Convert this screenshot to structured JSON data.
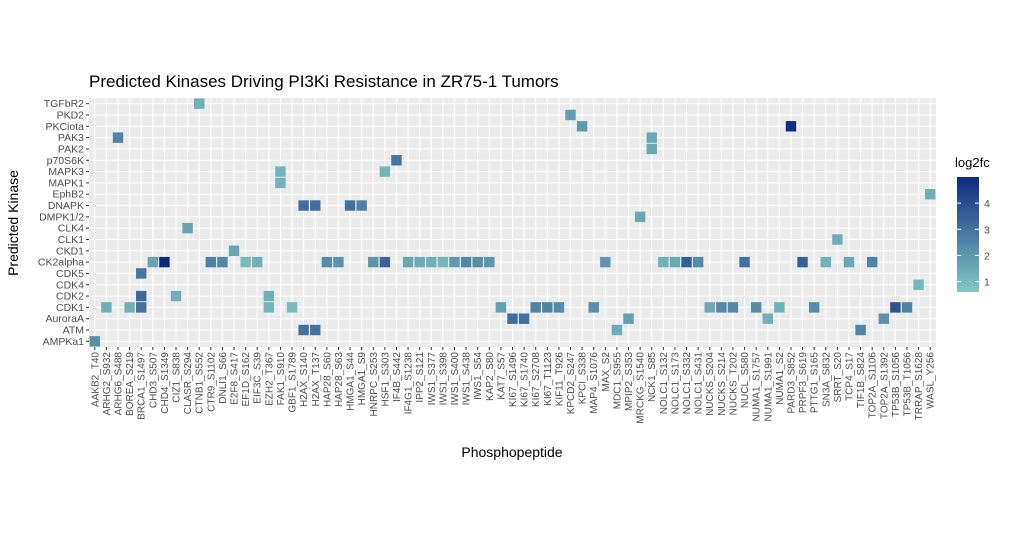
{
  "chart_data": {
    "type": "heatmap",
    "title": "Predicted Kinases Driving PI3Ki Resistance in ZR75-1 Tumors",
    "xlabel": "Phosphopeptide",
    "ylabel": "Predicted Kinase",
    "grid": true,
    "legend": {
      "title": "log2fc",
      "position": "right",
      "ticks": [
        1,
        2,
        3,
        4
      ],
      "range": [
        0.6,
        5.0
      ],
      "colors": [
        "#83c9c3",
        "#0d2a80"
      ]
    },
    "x_categories": [
      "AAKB2_T40",
      "ARHG2_S932",
      "ARHG6_S488",
      "BOREA_S219",
      "BRCA1_S1497",
      "CHD3_S507",
      "CHD4_S1349",
      "CIZ1_S838",
      "CLASR_S294",
      "CTNB1_S552",
      "CTR9_S1102",
      "DNLI1_S66",
      "E2F8_S417",
      "EF1D_S162",
      "EIF3C_S39",
      "EZH2_T367",
      "FAK1_S910",
      "GBF1_S1789",
      "H2AX_S140",
      "H2AX_T137",
      "HAP28_S60",
      "HAP28_S63",
      "HMGA1_S44",
      "HMGA1_S9",
      "HNRPC_S253",
      "HSF1_S303",
      "IF4B_S442",
      "IF4G1_S1238",
      "IPP2_S121",
      "IWS1_S377",
      "IWS1_S398",
      "IWS1_S400",
      "IWS1_S438",
      "IWS1_S54",
      "KAP2_S80",
      "KAT7_S57",
      "KI67_S1496",
      "KI67_S1740",
      "KI67_S2708",
      "KI67_T1123",
      "KIF11_T926",
      "KPCD2_S247",
      "KPCI_S338",
      "MAP4_S1076",
      "MAX_S2",
      "MDC1_S955",
      "MPIP2_S353",
      "MRCKG_S1540",
      "NCK1_S85",
      "NOLC1_S132",
      "NOLC1_S173",
      "NOLC1_S332",
      "NOLC1_S431",
      "NUCKS_S204",
      "NUCKS_S214",
      "NUCKS_T202",
      "NUCL_S580",
      "NUMA1_S1757",
      "NUMA1_S1991",
      "NUMA1_S2",
      "PARD3_S852",
      "PRPF3_S619",
      "PTTG1_S165",
      "SN3A_S832",
      "SRRT_S20",
      "TCP4_S17",
      "TIF1B_S824",
      "TOP2A_S1106",
      "TOP2A_S1392",
      "TP53B_S1056",
      "TP53B_T1056",
      "TRRAP_S1628",
      "WASL_Y256"
    ],
    "x_tick_labels": [
      "AAKB2_T40",
      "ARHG2_S932",
      "ARHG6_S488",
      "BOREA_S219",
      "BRCA1_S1497",
      "CHD3_S507",
      "CHD4_S1349",
      "CIZ1_S838",
      "CLASR_S294",
      "CTNB1_S552",
      "CTR9_S1102",
      "DNLI1_S66",
      "E2F8_S417",
      "EF1D_S162",
      "EIF3C_S39",
      "EZH2_T367",
      "FAK1_S910",
      "GBF1_S1789",
      "H2AX_S140",
      "H2AX_T137",
      "HAP28_S60",
      "HAP28_S63",
      "HMGA1_S44",
      "HMGA1_S9",
      "HNRPC_S253",
      "HSF1_S303",
      "IF4B_S442",
      "IF4G1_S1238",
      "IPP2_S121",
      "IWS1_S377",
      "IWS1_S398",
      "IWS1_S400",
      "IWS1_S438",
      "IWS1_S54",
      "KAP2_S80",
      "KAT7_S57",
      "KI67_S1496",
      "KI67_S1740",
      "KI67_S2708",
      "KI67_T1123",
      "KIF11_T926",
      "KPCD2_S247",
      "KPCI_S338",
      "MAP4_S1076",
      "MAX_S2",
      "MDC1_S955",
      "MPIP2_S353",
      "MRCKG_S1540",
      "NCK1_S85",
      "NOLC1_S132",
      "NOLC1_S173",
      "NOLC1_S332",
      "NOLC1_S431",
      "NUCKS_S204",
      "NUCKS_S214",
      "NUCKS_T202",
      "NUCL_S580",
      "NUMA1_S1757",
      "NUMA1_S1991",
      "NUMA1_S2",
      "PARD3_S852",
      "PRPF3_S619",
      "PTTG1_S165",
      "SN3A_S832",
      "SRRT_S20",
      "TCP4_S17",
      "TIF1B_S824",
      "TOP2A_S1106",
      "TOP2A_S1392",
      "TP53B_S1056",
      "TP53B_T1056",
      "TRRAP_S1628",
      "WASL_Y256"
    ],
    "y_categories": [
      "AMPKa1",
      "ATM",
      "AuroraA",
      "CDK1",
      "CDK2",
      "CDK4",
      "CDK5",
      "CK2alpha",
      "CKD1",
      "CLK1",
      "CLK4",
      "DMPK1/2",
      "DNAPK",
      "EphB2",
      "MAPK1",
      "MAPK3",
      "p70S6K",
      "PAK2",
      "PAK3",
      "PKCiota",
      "PKD2",
      "TGFbR2"
    ],
    "cells": [
      {
        "x": "AAKB2_T40",
        "y": "AMPKa1",
        "value": 2.2
      },
      {
        "x": "ARHG2_S932",
        "y": "CDK1",
        "value": 1.4
      },
      {
        "x": "ARHG6_S488",
        "y": "PAK3",
        "value": 2.5
      },
      {
        "x": "BOREA_S219",
        "y": "CDK1",
        "value": 1.3
      },
      {
        "x": "BRCA1_S1497",
        "y": "CDK1",
        "value": 3.0
      },
      {
        "x": "BRCA1_S1497",
        "y": "CDK2",
        "value": 3.2
      },
      {
        "x": "BRCA1_S1497",
        "y": "CDK5",
        "value": 2.9
      },
      {
        "x": "CHD3_S507",
        "y": "CK2alpha",
        "value": 1.6
      },
      {
        "x": "CHD4_S1349",
        "y": "CK2alpha",
        "value": 5.0
      },
      {
        "x": "CIZ1_S838",
        "y": "CDK2",
        "value": 1.3
      },
      {
        "x": "CLASR_S294",
        "y": "CLK4",
        "value": 1.6
      },
      {
        "x": "CTNB1_S552",
        "y": "TGFbR2",
        "value": 1.3
      },
      {
        "x": "CTR9_S1102",
        "y": "CK2alpha",
        "value": 2.6
      },
      {
        "x": "DNLI1_S66",
        "y": "CK2alpha",
        "value": 2.4
      },
      {
        "x": "E2F8_S417",
        "y": "CKD1",
        "value": 1.6
      },
      {
        "x": "EF1D_S162",
        "y": "CK2alpha",
        "value": 1.0
      },
      {
        "x": "EIF3C_S39",
        "y": "CK2alpha",
        "value": 1.3
      },
      {
        "x": "EZH2_T367",
        "y": "CDK1",
        "value": 1.2
      },
      {
        "x": "EZH2_T367",
        "y": "CDK2",
        "value": 1.3
      },
      {
        "x": "FAK1_S910",
        "y": "MAPK1",
        "value": 1.2
      },
      {
        "x": "FAK1_S910",
        "y": "MAPK3",
        "value": 1.2
      },
      {
        "x": "GBF1_S1789",
        "y": "CDK1",
        "value": 1.0
      },
      {
        "x": "H2AX_S140",
        "y": "ATM",
        "value": 3.0
      },
      {
        "x": "H2AX_S140",
        "y": "DNAPK",
        "value": 3.1
      },
      {
        "x": "H2AX_T137",
        "y": "ATM",
        "value": 3.0
      },
      {
        "x": "H2AX_T137",
        "y": "DNAPK",
        "value": 3.1
      },
      {
        "x": "HAP28_S60",
        "y": "CK2alpha",
        "value": 2.3
      },
      {
        "x": "HAP28_S63",
        "y": "CK2alpha",
        "value": 2.1
      },
      {
        "x": "HMGA1_S44",
        "y": "DNAPK",
        "value": 3.0
      },
      {
        "x": "HMGA1_S9",
        "y": "DNAPK",
        "value": 2.6
      },
      {
        "x": "HNRPC_S253",
        "y": "CK2alpha",
        "value": 2.0
      },
      {
        "x": "HSF1_S303",
        "y": "CK2alpha",
        "value": 3.4
      },
      {
        "x": "HSF1_S303",
        "y": "MAPK3",
        "value": 1.2
      },
      {
        "x": "IF4B_S442",
        "y": "p70S6K",
        "value": 2.9
      },
      {
        "x": "IF4G1_S1238",
        "y": "CK2alpha",
        "value": 1.5
      },
      {
        "x": "IPP2_S121",
        "y": "CK2alpha",
        "value": 1.4
      },
      {
        "x": "IWS1_S377",
        "y": "CK2alpha",
        "value": 1.3
      },
      {
        "x": "IWS1_S398",
        "y": "CK2alpha",
        "value": 1.1
      },
      {
        "x": "IWS1_S400",
        "y": "CK2alpha",
        "value": 1.9
      },
      {
        "x": "IWS1_S438",
        "y": "CK2alpha",
        "value": 2.4
      },
      {
        "x": "IWS1_S54",
        "y": "CK2alpha",
        "value": 2.2
      },
      {
        "x": "KAP2_S80",
        "y": "CK2alpha",
        "value": 2.0
      },
      {
        "x": "KAT7_S57",
        "y": "CDK1",
        "value": 1.8
      },
      {
        "x": "KI67_S1496",
        "y": "AuroraA",
        "value": 3.1
      },
      {
        "x": "KI67_S1740",
        "y": "AuroraA",
        "value": 3.0
      },
      {
        "x": "KI67_S2708",
        "y": "CDK1",
        "value": 2.6
      },
      {
        "x": "KI67_T1123",
        "y": "CDK1",
        "value": 2.6
      },
      {
        "x": "KIF11_T926",
        "y": "CDK1",
        "value": 2.3
      },
      {
        "x": "KPCD2_S247",
        "y": "PKD2",
        "value": 1.8
      },
      {
        "x": "KPCI_S338",
        "y": "PKCiota",
        "value": 1.9
      },
      {
        "x": "MAP4_S1076",
        "y": "CDK1",
        "value": 2.2
      },
      {
        "x": "MAX_S2",
        "y": "CK2alpha",
        "value": 2.0
      },
      {
        "x": "MDC1_S955",
        "y": "ATM",
        "value": 1.4
      },
      {
        "x": "MPIP2_S353",
        "y": "AuroraA",
        "value": 1.8
      },
      {
        "x": "MRCKG_S1540",
        "y": "DMPK1/2",
        "value": 1.5
      },
      {
        "x": "NCK1_S85",
        "y": "PAK2",
        "value": 1.5
      },
      {
        "x": "NCK1_S85",
        "y": "PAK3",
        "value": 1.5
      },
      {
        "x": "NOLC1_S132",
        "y": "CK2alpha",
        "value": 1.3
      },
      {
        "x": "NOLC1_S173",
        "y": "CK2alpha",
        "value": 1.5
      },
      {
        "x": "NOLC1_S332",
        "y": "CK2alpha",
        "value": 3.5
      },
      {
        "x": "NOLC1_S431",
        "y": "CK2alpha",
        "value": 2.3
      },
      {
        "x": "NUCKS_S204",
        "y": "CDK1",
        "value": 1.5
      },
      {
        "x": "NUCKS_S214",
        "y": "CDK1",
        "value": 2.4
      },
      {
        "x": "NUCKS_T202",
        "y": "CDK1",
        "value": 2.4
      },
      {
        "x": "NUCL_S580",
        "y": "CK2alpha",
        "value": 3.0
      },
      {
        "x": "NUMA1_S1757",
        "y": "CDK1",
        "value": 2.3
      },
      {
        "x": "NUMA1_S1991",
        "y": "AuroraA",
        "value": 1.3
      },
      {
        "x": "NUMA1_S2",
        "y": "CDK1",
        "value": 1.3
      },
      {
        "x": "PARD3_S852",
        "y": "PKCiota",
        "value": 4.9
      },
      {
        "x": "PRPF3_S619",
        "y": "CK2alpha",
        "value": 3.5
      },
      {
        "x": "PTTG1_S165",
        "y": "CDK1",
        "value": 2.3
      },
      {
        "x": "SN3A_S832",
        "y": "CK2alpha",
        "value": 1.3
      },
      {
        "x": "SRRT_S20",
        "y": "CLK1",
        "value": 1.4
      },
      {
        "x": "TCP4_S17",
        "y": "CK2alpha",
        "value": 1.5
      },
      {
        "x": "TIF1B_S824",
        "y": "ATM",
        "value": 2.5
      },
      {
        "x": "TOP2A_S1106",
        "y": "CK2alpha",
        "value": 2.5
      },
      {
        "x": "TOP2A_S1392",
        "y": "AuroraA",
        "value": 2.1
      },
      {
        "x": "TP53B_S1056",
        "y": "CDK1",
        "value": 3.9
      },
      {
        "x": "TP53B_T1056",
        "y": "CDK1",
        "value": 2.6
      },
      {
        "x": "TRRAP_S1628",
        "y": "CDK4",
        "value": 1.1
      },
      {
        "x": "WASL_Y256",
        "y": "EphB2",
        "value": 1.3
      }
    ]
  }
}
